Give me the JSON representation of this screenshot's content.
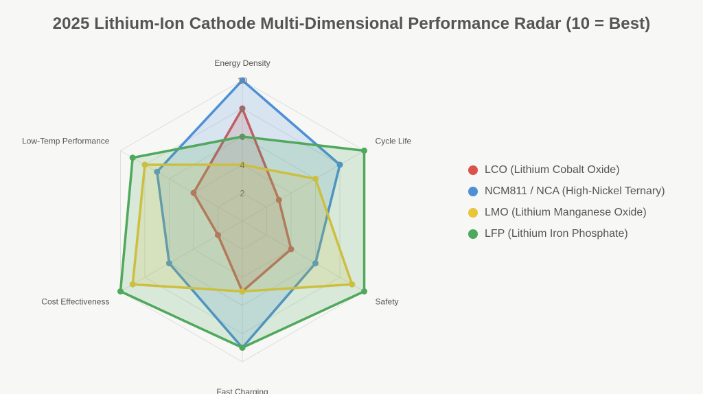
{
  "chart_data": {
    "type": "radar",
    "title": "2025 Lithium-Ion Cathode Multi-Dimensional Performance Radar (10 = Best)",
    "axes": [
      "Energy Density",
      "Cycle Life",
      "Safety",
      "Fast Charging",
      "Cost Effectiveness",
      "Low-Temp Performance"
    ],
    "rlim": [
      0,
      10
    ],
    "ticks": [
      "2",
      "4",
      "6",
      "8",
      "10"
    ],
    "tick_values": [
      2,
      4,
      6,
      8,
      10
    ],
    "legend_position": "right",
    "series": [
      {
        "name": "LCO (Lithium Cobalt Oxide)",
        "color": "#d9534a",
        "values": [
          8,
          3,
          4,
          5,
          2,
          4
        ]
      },
      {
        "name": "NCM811 / NCA (High-Nickel Ternary)",
        "color": "#4d90d6",
        "values": [
          10,
          8,
          6,
          9,
          6,
          7
        ]
      },
      {
        "name": "LMO (Lithium Manganese Oxide)",
        "color": "#e8c53a",
        "values": [
          4,
          6,
          9,
          5,
          9,
          8
        ]
      },
      {
        "name": "LFP (Lithium Iron Phosphate)",
        "color": "#4fa85c",
        "values": [
          6,
          10,
          10,
          9,
          10,
          9
        ]
      }
    ]
  }
}
